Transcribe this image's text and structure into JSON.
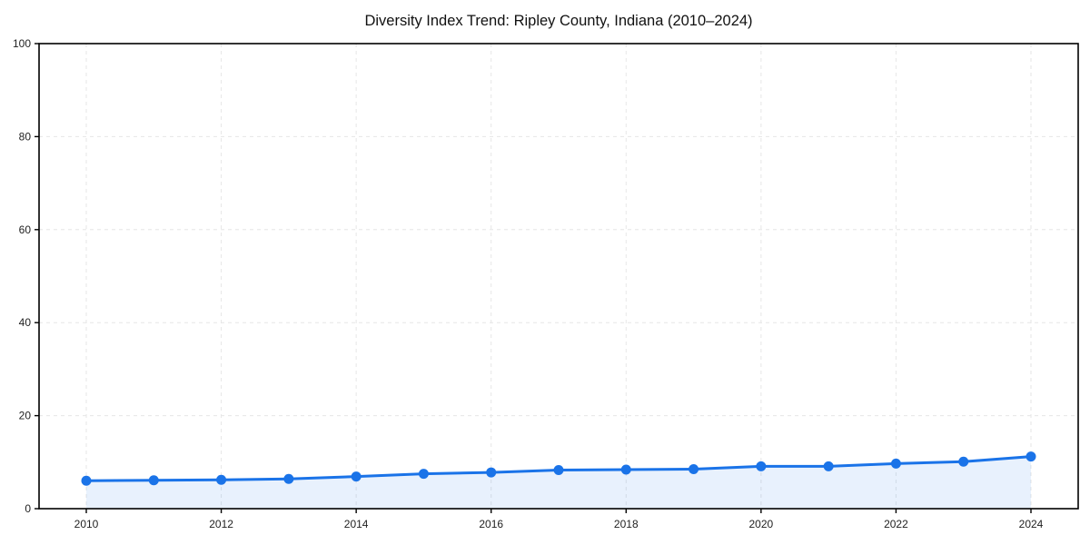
{
  "page": {
    "background": "#ffffff"
  },
  "chart_data": {
    "type": "line",
    "title": "Diversity Index Trend: Ripley County, Indiana (2010–2024)",
    "x": [
      2010,
      2011,
      2012,
      2013,
      2014,
      2015,
      2016,
      2017,
      2018,
      2019,
      2020,
      2021,
      2022,
      2023,
      2024
    ],
    "series": [
      {
        "name": "Diversity Index",
        "values": [
          6.0,
          6.1,
          6.2,
          6.4,
          6.9,
          7.5,
          7.8,
          8.3,
          8.4,
          8.5,
          9.1,
          9.1,
          9.7,
          10.1,
          11.2
        ],
        "marker": "circle",
        "area_fill": true
      }
    ],
    "xlabel": "",
    "ylabel": "",
    "xlim": [
      2009.3,
      2024.7
    ],
    "ylim": [
      0,
      100
    ],
    "yticks": [
      0,
      20,
      40,
      60,
      80,
      100
    ],
    "xticks": [
      2010,
      2012,
      2014,
      2016,
      2018,
      2020,
      2022,
      2024
    ],
    "grid": {
      "horizontal": true,
      "vertical": true,
      "style": "dashed",
      "color": "#e6e6e6"
    },
    "legend_position": "none",
    "colors": {
      "line": "#1a73e8",
      "marker": "#1a73e8",
      "area": "#1a73e8",
      "area_opacity": 0.1,
      "axis": "#000000",
      "tick_label": "#222222",
      "title": "#111111",
      "background": "#ffffff"
    }
  }
}
